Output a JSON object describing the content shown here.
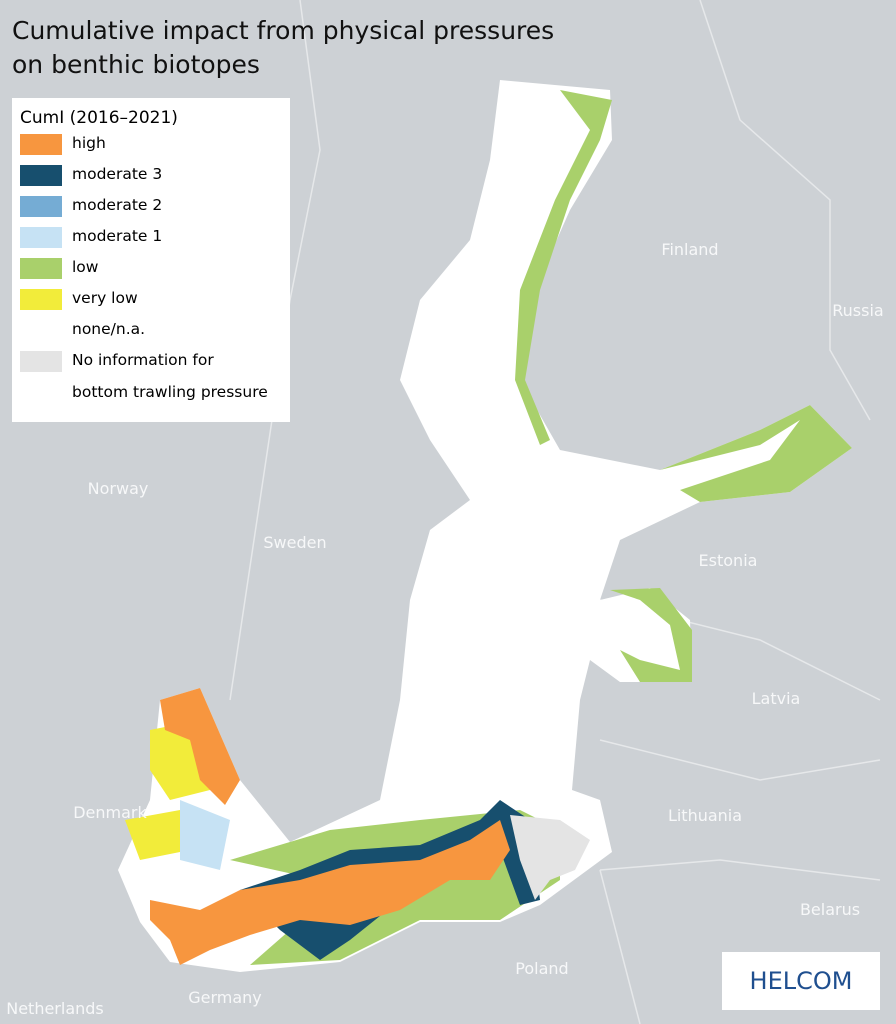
{
  "title": [
    "Cumulative impact from physical pressures",
    "on benthic biotopes"
  ],
  "legend": {
    "title": "CumI (2016–2021)",
    "items": [
      {
        "label": "high",
        "color": "#f7963f"
      },
      {
        "label": "moderate 3",
        "color": "#174f6e"
      },
      {
        "label": "moderate 2",
        "color": "#75acd4"
      },
      {
        "label": "moderate 1",
        "color": "#c6e2f4"
      },
      {
        "label": "low",
        "color": "#a9d06b"
      },
      {
        "label": "very low",
        "color": "#f2ec3a"
      },
      {
        "label": "none/n.a.",
        "color": "#ffffff"
      },
      {
        "label": "No information for",
        "label_line2": "bottom trawling pressure",
        "color": "#e4e4e4"
      }
    ]
  },
  "countries": [
    "Finland",
    "Russia",
    "Sweden",
    "Norway",
    "Estonia",
    "Latvia",
    "Lithuania",
    "Belarus",
    "Poland",
    "Denmark",
    "Germany",
    "Netherlands"
  ],
  "logo": "HELCOM"
}
